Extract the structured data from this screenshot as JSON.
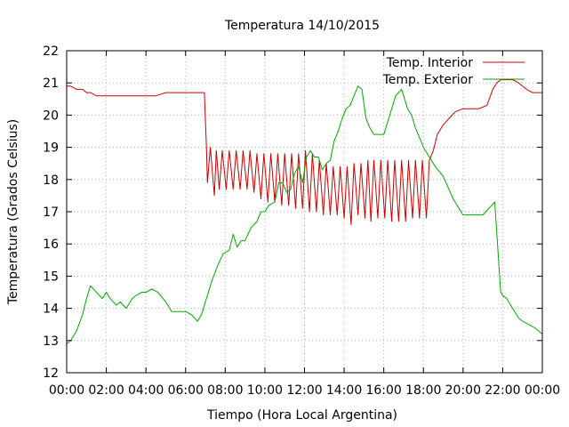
{
  "chart_data": {
    "type": "line",
    "title": "Temperatura 14/10/2015",
    "xlabel": "Tiempo (Hora Local Argentina)",
    "ylabel": "Temperatura (Grados Celsius)",
    "xlim": [
      0,
      24
    ],
    "ylim": [
      12,
      22
    ],
    "grid": true,
    "legend_position": "top-right",
    "x_ticks": [
      {
        "value": 0,
        "label": "00:00"
      },
      {
        "value": 2,
        "label": "02:00"
      },
      {
        "value": 4,
        "label": "04:00"
      },
      {
        "value": 6,
        "label": "06:00"
      },
      {
        "value": 8,
        "label": "08:00"
      },
      {
        "value": 10,
        "label": "10:00"
      },
      {
        "value": 12,
        "label": "12:00"
      },
      {
        "value": 14,
        "label": "14:00"
      },
      {
        "value": 16,
        "label": "16:00"
      },
      {
        "value": 18,
        "label": "18:00"
      },
      {
        "value": 20,
        "label": "20:00"
      },
      {
        "value": 22,
        "label": "22:00"
      },
      {
        "value": 24,
        "label": "00:00"
      }
    ],
    "y_ticks": [
      {
        "value": 12,
        "label": "12"
      },
      {
        "value": 13,
        "label": "13"
      },
      {
        "value": 14,
        "label": "14"
      },
      {
        "value": 15,
        "label": "15"
      },
      {
        "value": 16,
        "label": "16"
      },
      {
        "value": 17,
        "label": "17"
      },
      {
        "value": 18,
        "label": "18"
      },
      {
        "value": 19,
        "label": "19"
      },
      {
        "value": 20,
        "label": "20"
      },
      {
        "value": 21,
        "label": "21"
      },
      {
        "value": 22,
        "label": "22"
      }
    ],
    "series": [
      {
        "name": "Temp. Interior",
        "color": "#cc0000",
        "x": [
          0,
          0.2,
          0.5,
          0.8,
          1.0,
          1.2,
          1.5,
          2.0,
          2.5,
          3.0,
          3.5,
          4.0,
          4.5,
          5.0,
          5.5,
          6.0,
          6.5,
          6.8,
          6.95,
          7.05,
          7.1,
          7.25,
          7.45,
          7.55,
          7.7,
          7.85,
          8.05,
          8.2,
          8.4,
          8.55,
          8.75,
          8.9,
          9.1,
          9.25,
          9.45,
          9.6,
          9.8,
          9.95,
          10.15,
          10.3,
          10.5,
          10.65,
          10.85,
          11.0,
          11.2,
          11.35,
          11.55,
          11.7,
          11.9,
          12.05,
          12.25,
          12.4,
          12.6,
          12.75,
          12.95,
          13.1,
          13.3,
          13.45,
          13.65,
          13.8,
          14.0,
          14.15,
          14.35,
          14.5,
          14.7,
          14.85,
          15.05,
          15.2,
          15.35,
          15.5,
          15.7,
          15.85,
          16.05,
          16.2,
          16.4,
          16.55,
          16.75,
          16.9,
          17.1,
          17.25,
          17.45,
          17.6,
          17.8,
          17.95,
          18.15,
          18.3,
          18.5,
          18.7,
          19.0,
          19.3,
          19.6,
          20.0,
          20.4,
          20.8,
          21.2,
          21.5,
          21.7,
          21.9,
          22.2,
          22.5,
          22.8,
          23.0,
          23.2,
          23.5,
          23.8,
          24.0
        ],
        "values": [
          20.9,
          20.9,
          20.8,
          20.8,
          20.7,
          20.7,
          20.6,
          20.6,
          20.6,
          20.6,
          20.6,
          20.6,
          20.6,
          20.7,
          20.7,
          20.7,
          20.7,
          20.7,
          20.7,
          19.0,
          17.9,
          19.0,
          17.5,
          18.9,
          17.7,
          18.9,
          17.7,
          18.9,
          17.7,
          18.9,
          17.7,
          18.9,
          17.7,
          18.9,
          17.6,
          18.8,
          17.4,
          18.8,
          17.3,
          18.8,
          17.3,
          18.8,
          17.2,
          18.8,
          17.2,
          18.8,
          17.1,
          18.8,
          17.1,
          18.9,
          17.0,
          18.8,
          17.0,
          18.6,
          16.9,
          18.5,
          16.9,
          18.4,
          16.9,
          18.4,
          16.8,
          18.4,
          16.6,
          18.5,
          16.9,
          18.5,
          16.8,
          18.6,
          16.7,
          18.6,
          16.8,
          18.6,
          16.8,
          18.6,
          16.7,
          18.6,
          16.7,
          18.6,
          16.7,
          18.6,
          16.8,
          18.6,
          16.8,
          18.6,
          16.8,
          18.6,
          18.9,
          19.4,
          19.7,
          19.9,
          20.1,
          20.2,
          20.2,
          20.2,
          20.3,
          20.8,
          21.0,
          21.1,
          21.1,
          21.1,
          21.0,
          20.9,
          20.8,
          20.7,
          20.7,
          20.7
        ]
      },
      {
        "name": "Temp. Exterior",
        "color": "#00aa00",
        "x": [
          0,
          0.2,
          0.5,
          0.8,
          1.0,
          1.2,
          1.5,
          1.8,
          2.0,
          2.2,
          2.5,
          2.7,
          3.0,
          3.3,
          3.5,
          3.8,
          4.0,
          4.3,
          4.6,
          5.0,
          5.3,
          5.6,
          6.0,
          6.3,
          6.6,
          6.8,
          7.0,
          7.3,
          7.6,
          7.9,
          8.2,
          8.4,
          8.6,
          8.8,
          9.0,
          9.3,
          9.6,
          9.8,
          10.0,
          10.2,
          10.5,
          10.7,
          10.9,
          11.1,
          11.3,
          11.5,
          11.7,
          11.9,
          12.1,
          12.3,
          12.5,
          12.7,
          12.9,
          13.1,
          13.3,
          13.5,
          13.7,
          13.9,
          14.1,
          14.3,
          14.5,
          14.7,
          14.9,
          15.1,
          15.3,
          15.5,
          15.7,
          16.0,
          16.3,
          16.6,
          16.9,
          17.0,
          17.2,
          17.4,
          17.6,
          17.8,
          18.0,
          18.3,
          18.6,
          19.0,
          19.5,
          20.0,
          20.5,
          21.0,
          21.3,
          21.6,
          21.8,
          21.9,
          22.0,
          22.2,
          22.5,
          22.8,
          23.0,
          23.3,
          23.6,
          24.0
        ],
        "values": [
          12.9,
          13.0,
          13.3,
          13.8,
          14.3,
          14.7,
          14.5,
          14.3,
          14.5,
          14.3,
          14.1,
          14.2,
          14.0,
          14.3,
          14.4,
          14.5,
          14.5,
          14.6,
          14.5,
          14.2,
          13.9,
          13.9,
          13.9,
          13.8,
          13.6,
          13.8,
          14.2,
          14.8,
          15.3,
          15.7,
          15.8,
          16.3,
          15.9,
          16.1,
          16.1,
          16.5,
          16.7,
          17.0,
          17.0,
          17.2,
          17.3,
          17.9,
          17.9,
          17.6,
          17.7,
          18.2,
          18.4,
          17.9,
          18.7,
          18.9,
          18.7,
          18.7,
          18.3,
          18.5,
          18.6,
          19.2,
          19.5,
          19.9,
          20.2,
          20.3,
          20.6,
          20.9,
          20.8,
          19.9,
          19.6,
          19.4,
          19.4,
          19.4,
          20.0,
          20.6,
          20.8,
          20.6,
          20.2,
          20.0,
          19.6,
          19.3,
          19.0,
          18.7,
          18.4,
          18.1,
          17.4,
          16.9,
          16.9,
          16.9,
          17.1,
          17.3,
          15.4,
          14.5,
          14.4,
          14.3,
          14.0,
          13.7,
          13.6,
          13.5,
          13.4,
          13.2
        ]
      }
    ]
  }
}
